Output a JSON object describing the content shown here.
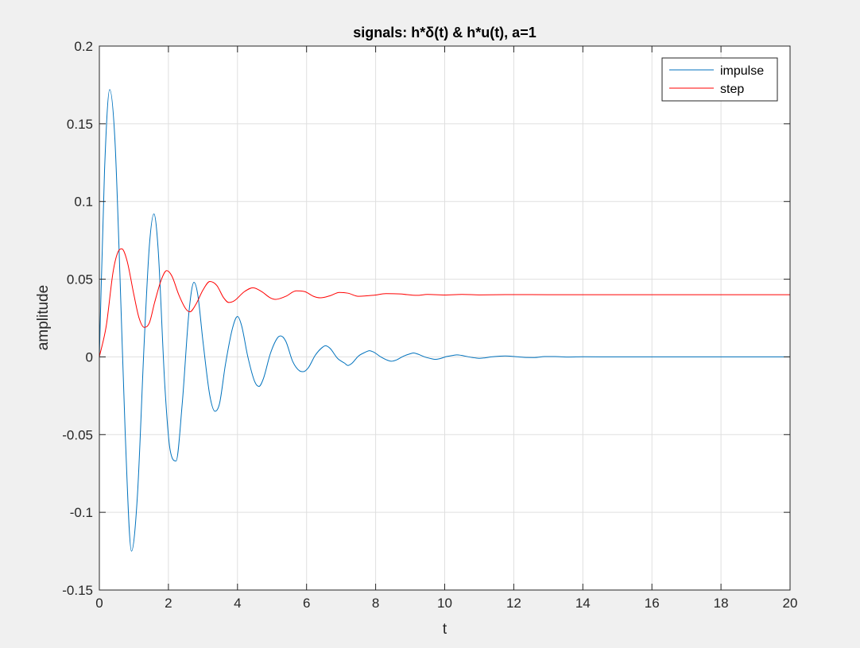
{
  "chart_data": {
    "type": "line",
    "title": "signals: h*δ(t) & h*u(t), a=1",
    "xlabel": "t",
    "ylabel": "amplitude",
    "xlim": [
      0,
      20
    ],
    "ylim": [
      -0.15,
      0.2
    ],
    "xticks": [
      0,
      2,
      4,
      6,
      8,
      10,
      12,
      14,
      16,
      18,
      20
    ],
    "xtick_labels": [
      "0",
      "2",
      "4",
      "6",
      "8",
      "10",
      "12",
      "14",
      "16",
      "18",
      "20"
    ],
    "yticks": [
      -0.15,
      -0.1,
      -0.05,
      0,
      0.05,
      0.1,
      0.15,
      0.2
    ],
    "ytick_labels": [
      "-0.15",
      "-0.1",
      "-0.05",
      "0",
      "0.05",
      "0.1",
      "0.15",
      "0.2"
    ],
    "grid": true,
    "legend_position": "top-right",
    "series": [
      {
        "name": "impulse",
        "color": "#0072BD",
        "x": [
          0,
          0.15,
          0.3,
          0.45,
          0.6,
          0.75,
          0.93,
          1.1,
          1.3,
          1.45,
          1.58,
          1.7,
          1.9,
          2.05,
          2.22,
          2.4,
          2.6,
          2.74,
          2.85,
          3.0,
          3.2,
          3.35,
          3.48,
          3.65,
          3.85,
          4.0,
          4.12,
          4.3,
          4.5,
          4.62,
          4.75,
          4.95,
          5.15,
          5.25,
          5.4,
          5.6,
          5.8,
          5.9,
          6.05,
          6.25,
          6.45,
          6.55,
          6.68,
          6.9,
          7.1,
          7.2,
          7.32,
          7.5,
          7.7,
          7.82,
          7.95,
          8.15,
          8.35,
          8.45,
          8.6,
          8.8,
          9.0,
          9.1,
          9.22,
          9.42,
          9.62,
          9.72,
          9.85,
          10.05,
          10.25,
          10.35,
          10.48,
          10.7,
          10.9,
          11.0,
          11.12,
          11.35,
          11.6,
          11.75,
          12.0,
          12.3,
          12.6,
          12.9,
          13.2,
          13.6,
          14.0,
          15.0,
          16.0,
          17.0,
          18.0,
          19.0,
          20.0
        ],
        "values": [
          0,
          0.12,
          0.172,
          0.14,
          0.05,
          -0.05,
          -0.125,
          -0.09,
          0.01,
          0.072,
          0.092,
          0.07,
          -0.02,
          -0.06,
          -0.067,
          -0.03,
          0.03,
          0.048,
          0.04,
          0.01,
          -0.025,
          -0.035,
          -0.03,
          -0.005,
          0.018,
          0.026,
          0.02,
          0.0,
          -0.016,
          -0.019,
          -0.014,
          0.002,
          0.012,
          0.0135,
          0.01,
          -0.003,
          -0.009,
          -0.0095,
          -0.007,
          0.001,
          0.006,
          0.0072,
          0.0055,
          -0.001,
          -0.004,
          -0.0055,
          -0.004,
          0.0005,
          0.003,
          0.004,
          0.003,
          0.0,
          -0.0022,
          -0.0028,
          -0.002,
          0.0004,
          0.002,
          0.0025,
          0.0018,
          0.0,
          -0.0012,
          -0.0016,
          -0.0012,
          0.0002,
          0.001,
          0.0013,
          0.001,
          0.0,
          -0.0007,
          -0.0009,
          -0.0007,
          0.0,
          0.0005,
          0.0006,
          0.0003,
          -0.0003,
          -0.0004,
          0.0002,
          0.0002,
          -0.0001,
          0.0001,
          0.0,
          0.0,
          0.0,
          0.0,
          0.0,
          0.0
        ]
      },
      {
        "name": "step",
        "color": "#FF0000",
        "x": [
          0,
          0.2,
          0.4,
          0.55,
          0.65,
          0.8,
          1.0,
          1.15,
          1.3,
          1.45,
          1.6,
          1.8,
          1.95,
          2.1,
          2.3,
          2.5,
          2.62,
          2.8,
          3.0,
          3.2,
          3.4,
          3.6,
          3.75,
          3.9,
          4.2,
          4.45,
          4.7,
          4.95,
          5.1,
          5.4,
          5.7,
          5.95,
          6.2,
          6.4,
          6.7,
          6.95,
          7.2,
          7.5,
          7.95,
          8.3,
          8.7,
          9.2,
          9.5,
          10.0,
          10.5,
          11.0,
          12.0,
          13.0,
          14.0,
          16.0,
          18.0,
          20.0
        ],
        "values": [
          0,
          0.02,
          0.055,
          0.068,
          0.0695,
          0.062,
          0.04,
          0.025,
          0.019,
          0.022,
          0.035,
          0.05,
          0.0555,
          0.052,
          0.04,
          0.031,
          0.029,
          0.034,
          0.043,
          0.0485,
          0.046,
          0.038,
          0.035,
          0.036,
          0.042,
          0.0445,
          0.042,
          0.038,
          0.037,
          0.039,
          0.0425,
          0.042,
          0.039,
          0.038,
          0.0395,
          0.0415,
          0.041,
          0.039,
          0.0397,
          0.0407,
          0.0405,
          0.0396,
          0.0402,
          0.0398,
          0.0402,
          0.0399,
          0.0401,
          0.04,
          0.04,
          0.04,
          0.04,
          0.04
        ]
      }
    ]
  }
}
